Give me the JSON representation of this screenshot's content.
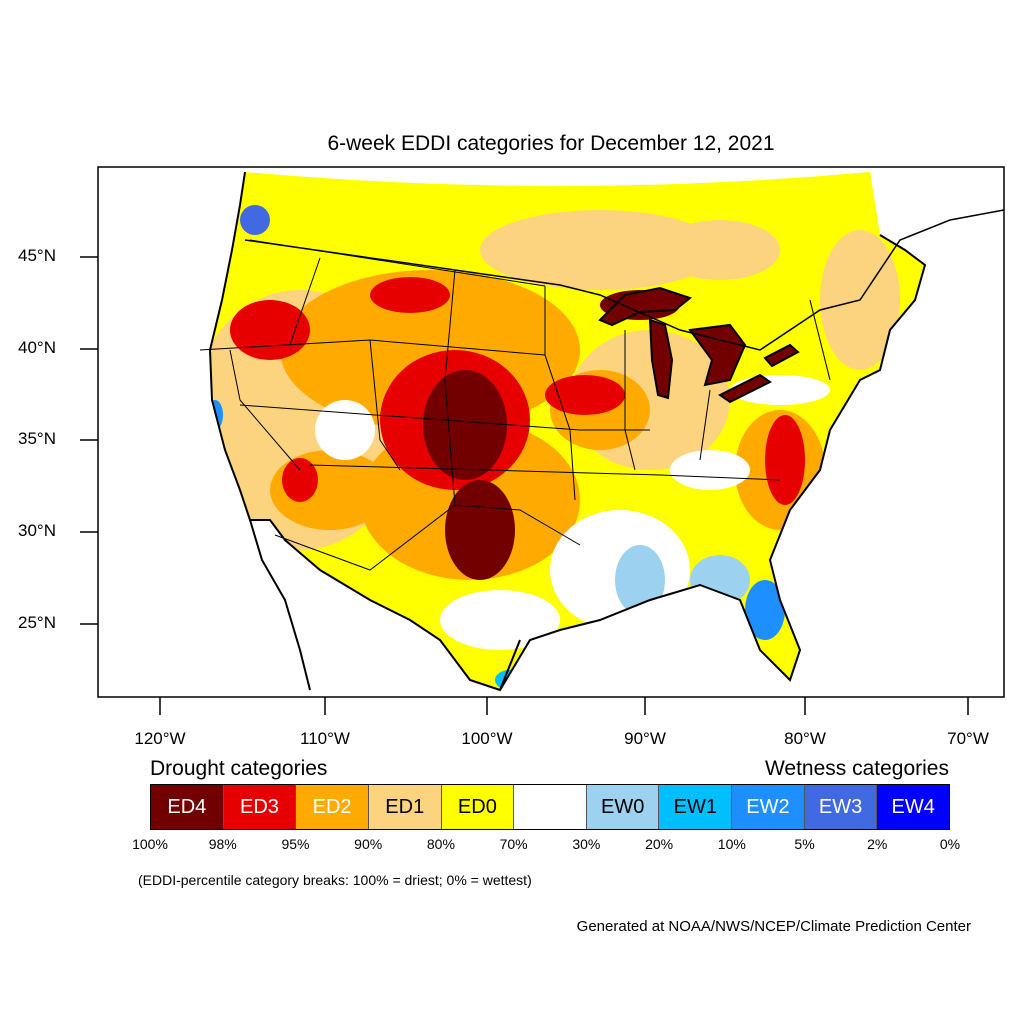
{
  "title": "6-week EDDI categories for December 12, 2021",
  "lat_labels": [
    "45°N",
    "40°N",
    "35°N",
    "30°N",
    "25°N"
  ],
  "lon_labels": [
    "120°W",
    "110°W",
    "100°W",
    "90°W",
    "80°W",
    "70°W"
  ],
  "legend": {
    "drought_heading": "Drought categories",
    "wetness_heading": "Wetness categories",
    "categories": [
      {
        "label": "ED4",
        "color": "#730000",
        "text_color": "#ffffff"
      },
      {
        "label": "ED3",
        "color": "#e60000",
        "text_color": "#ffffff"
      },
      {
        "label": "ED2",
        "color": "#ffaa00",
        "text_color": "#ffffff"
      },
      {
        "label": "ED1",
        "color": "#fcd37f",
        "text_color": "#000000"
      },
      {
        "label": "ED0",
        "color": "#ffff00",
        "text_color": "#000000"
      },
      {
        "label": "",
        "color": "#ffffff",
        "text_color": "#000000"
      },
      {
        "label": "EW0",
        "color": "#9dd1f0",
        "text_color": "#000000"
      },
      {
        "label": "EW1",
        "color": "#00bfff",
        "text_color": "#000000"
      },
      {
        "label": "EW2",
        "color": "#1e8fff",
        "text_color": "#ffffff"
      },
      {
        "label": "EW3",
        "color": "#4169e1",
        "text_color": "#ffffff"
      },
      {
        "label": "EW4",
        "color": "#0000ff",
        "text_color": "#ffffff"
      }
    ],
    "breaks": [
      "100%",
      "98%",
      "95%",
      "90%",
      "80%",
      "70%",
      "30%",
      "20%",
      "10%",
      "5%",
      "2%",
      "0%"
    ]
  },
  "breaks_note": "(EDDI-percentile category breaks: 100% = driest; 0% = wettest)",
  "credit": "Generated at NOAA/NWS/NCEP/Climate Prediction Center"
}
